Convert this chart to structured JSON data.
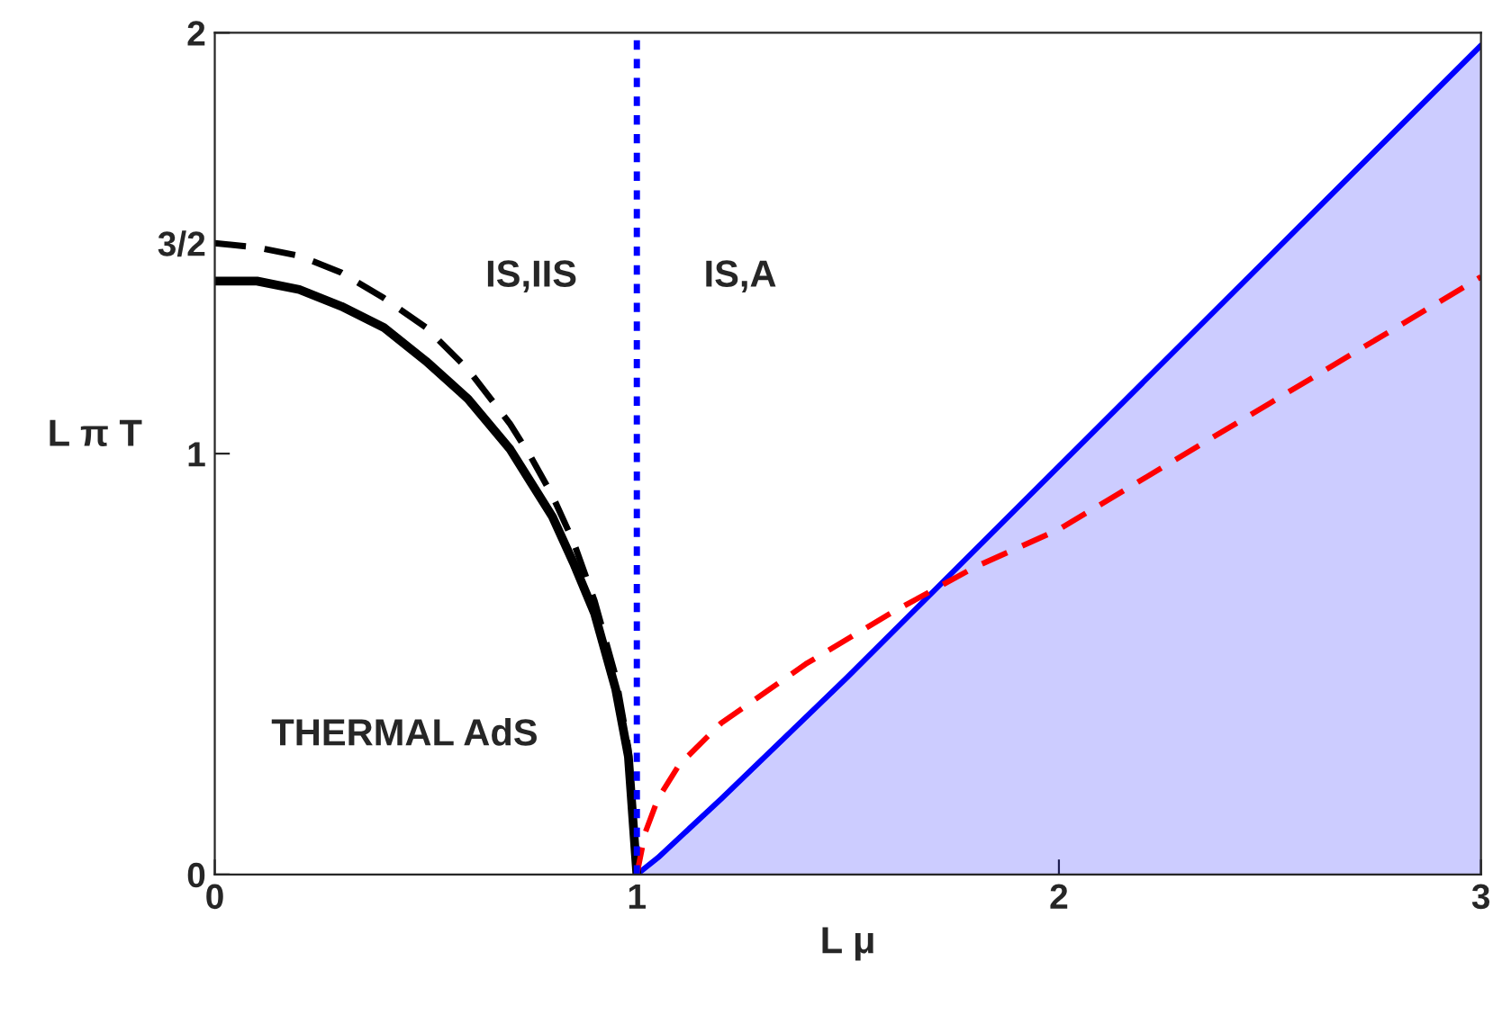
{
  "chart_data": {
    "type": "line",
    "xlabel": "L μ",
    "ylabel": "L π T",
    "xlim": [
      0,
      3
    ],
    "ylim": [
      0,
      2
    ],
    "xticks": [
      0,
      1,
      2,
      3
    ],
    "yticks": [
      0,
      1,
      {
        "value": 1.5,
        "label": "3/2"
      },
      2
    ],
    "grid": false,
    "series": [
      {
        "type": "area",
        "color": "#0000ff",
        "line_style": "solid",
        "x": [
          1,
          1.05,
          1.2,
          1.5,
          2,
          2.5,
          3
        ],
        "values": [
          0,
          0.04,
          0.18,
          0.47,
          0.97,
          1.47,
          1.97
        ]
      },
      {
        "color": "#000000",
        "line_style": "solid",
        "x": [
          0,
          0.1,
          0.2,
          0.3,
          0.4,
          0.5,
          0.6,
          0.7,
          0.75,
          0.8,
          0.85,
          0.9,
          0.95,
          0.98,
          1
        ],
        "values": [
          1.41,
          1.41,
          1.39,
          1.35,
          1.3,
          1.22,
          1.13,
          1.01,
          0.93,
          0.85,
          0.74,
          0.62,
          0.44,
          0.28,
          0
        ]
      },
      {
        "color": "#000000",
        "line_style": "dashed",
        "x": [
          0,
          0.1,
          0.2,
          0.3,
          0.4,
          0.5,
          0.6,
          0.7,
          0.75,
          0.8,
          0.85,
          0.9,
          0.95,
          0.98,
          1
        ],
        "values": [
          1.5,
          1.49,
          1.47,
          1.43,
          1.37,
          1.3,
          1.2,
          1.07,
          0.99,
          0.9,
          0.79,
          0.65,
          0.47,
          0.3,
          0
        ]
      },
      {
        "color": "#ff0000",
        "line_style": "dashed",
        "x": [
          1,
          1.02,
          1.05,
          1.1,
          1.2,
          1.4,
          1.6,
          1.8,
          2,
          2.5,
          3
        ],
        "values": [
          0,
          0.1,
          0.18,
          0.26,
          0.36,
          0.5,
          0.62,
          0.73,
          0.82,
          1.12,
          1.42
        ]
      }
    ],
    "ref_lines": [
      {
        "axis": "x",
        "value": 1,
        "color": "#0000ff",
        "line_style": "dotted"
      }
    ],
    "annotations": [
      "IS,IIS",
      "IS,A",
      "THERMAL AdS"
    ]
  }
}
